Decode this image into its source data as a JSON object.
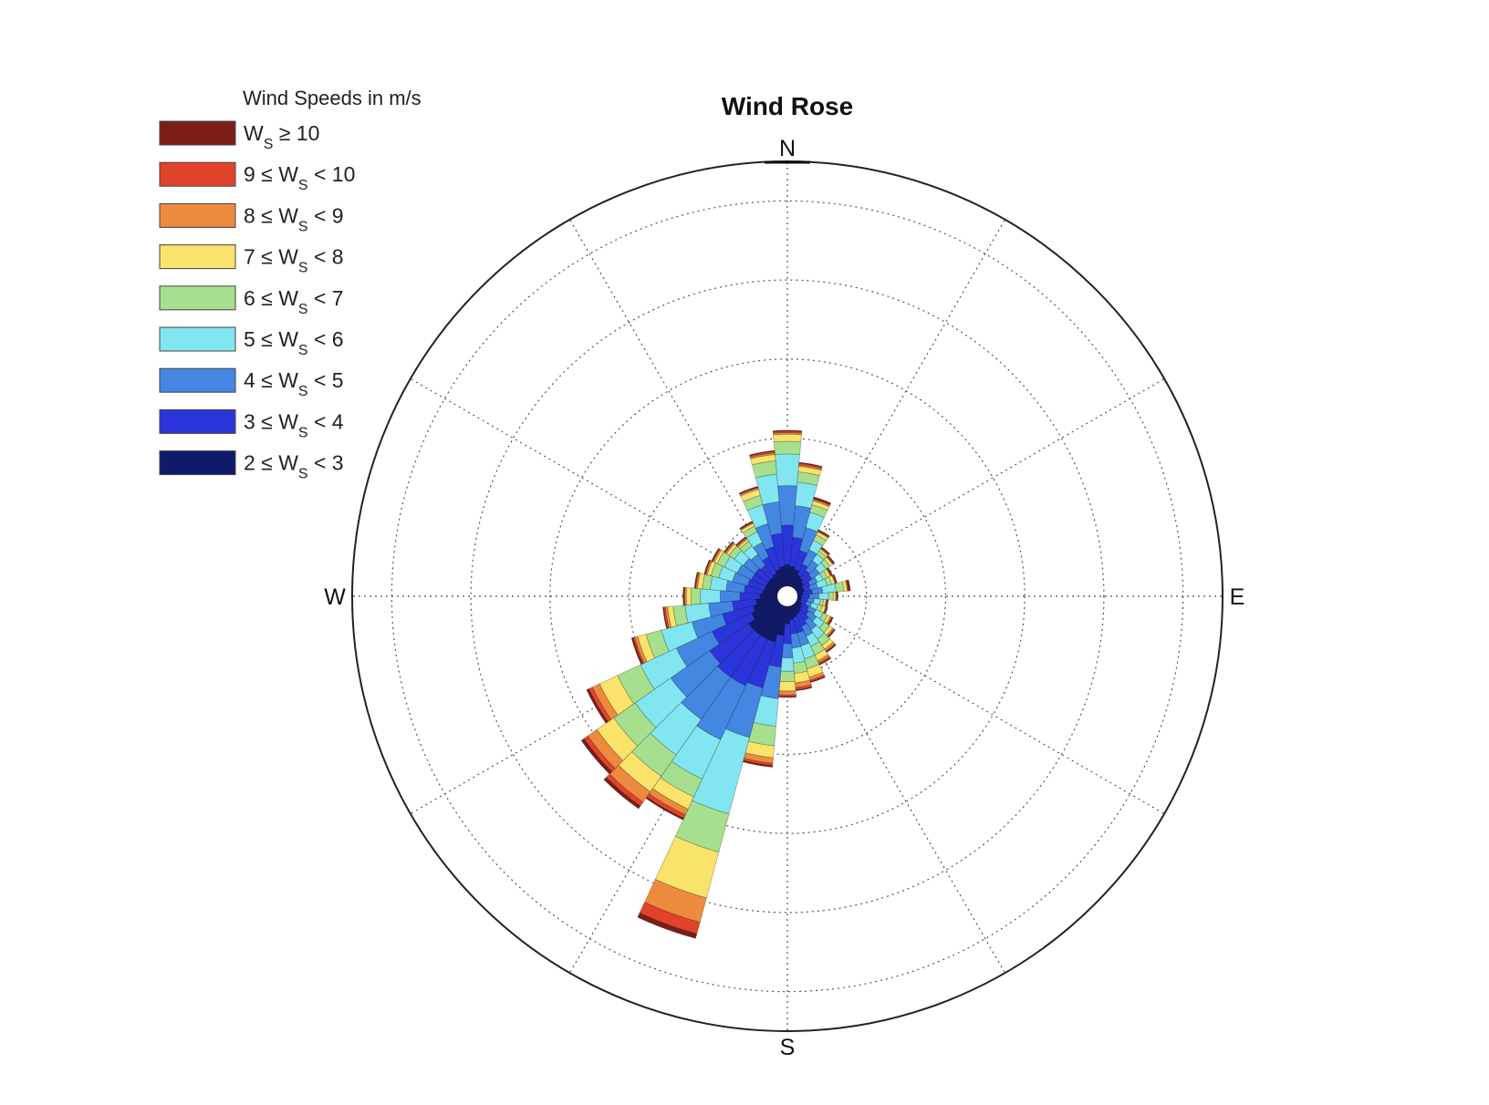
{
  "chart_data": {
    "type": "polar-bar",
    "title": "Wind Rose",
    "directions": {
      "north": "N",
      "east": "E",
      "south": "S",
      "west": "W"
    },
    "legend": {
      "title": "Wind Speeds in m/s",
      "placement": "top-left",
      "entries": [
        {
          "pre": "",
          "var": "W",
          "sub": "S",
          "post": " ≥ 10",
          "color": "#7a1e16"
        },
        {
          "pre": "9 ≤ ",
          "var": "W",
          "sub": "S",
          "post": " < 10",
          "color": "#e2432b"
        },
        {
          "pre": "8 ≤ ",
          "var": "W",
          "sub": "S",
          "post": " < 9",
          "color": "#ee8a3e"
        },
        {
          "pre": "7 ≤ ",
          "var": "W",
          "sub": "S",
          "post": " < 8",
          "color": "#f9e36b"
        },
        {
          "pre": "6 ≤ ",
          "var": "W",
          "sub": "S",
          "post": " < 7",
          "color": "#a6e08e"
        },
        {
          "pre": "5 ≤ ",
          "var": "W",
          "sub": "S",
          "post": " < 6",
          "color": "#82e6f0"
        },
        {
          "pre": "4 ≤ ",
          "var": "W",
          "sub": "S",
          "post": " < 5",
          "color": "#4487e2"
        },
        {
          "pre": "3 ≤ ",
          "var": "W",
          "sub": "S",
          "post": " < 4",
          "color": "#2b35dc"
        },
        {
          "pre": "2 ≤ ",
          "var": "W",
          "sub": "S",
          "post": " < 3",
          "color": "#0f1a6b"
        }
      ]
    },
    "rings": [
      1,
      2,
      3,
      4,
      5
    ],
    "r_max": 5.5,
    "spokes_deg": [
      0,
      30,
      60,
      90,
      120,
      150,
      180,
      210,
      240,
      270,
      300,
      330
    ],
    "bin_width_deg": 10,
    "bin_order_inner_to_outer": [
      "2-3",
      "3-4",
      "4-5",
      "5-6",
      "6-7",
      "7-8",
      "8-9",
      "9-10",
      ">=10"
    ],
    "bins": [
      {
        "dir": 0,
        "cum": [
          0.4,
          0.9,
          1.4,
          1.8,
          1.96,
          2.05,
          2.07,
          2.09,
          2.1
        ]
      },
      {
        "dir": 10,
        "cum": [
          0.38,
          0.75,
          1.15,
          1.45,
          1.58,
          1.65,
          1.67,
          1.69,
          1.7
        ]
      },
      {
        "dir": 20,
        "cum": [
          0.35,
          0.6,
          0.9,
          1.1,
          1.2,
          1.25,
          1.27,
          1.28,
          1.3
        ]
      },
      {
        "dir": 30,
        "cum": [
          0.3,
          0.45,
          0.65,
          0.78,
          0.86,
          0.9,
          0.91,
          0.92,
          0.93
        ]
      },
      {
        "dir": 40,
        "cum": [
          0.28,
          0.4,
          0.55,
          0.65,
          0.7,
          0.73,
          0.74,
          0.75,
          0.76
        ]
      },
      {
        "dir": 50,
        "cum": [
          0.25,
          0.38,
          0.5,
          0.6,
          0.66,
          0.7,
          0.71,
          0.72,
          0.73
        ]
      },
      {
        "dir": 60,
        "cum": [
          0.22,
          0.32,
          0.42,
          0.5,
          0.56,
          0.6,
          0.61,
          0.62,
          0.63
        ]
      },
      {
        "dir": 70,
        "cum": [
          0.22,
          0.3,
          0.4,
          0.52,
          0.58,
          0.62,
          0.63,
          0.64,
          0.65
        ]
      },
      {
        "dir": 80,
        "cum": [
          0.2,
          0.32,
          0.45,
          0.62,
          0.72,
          0.76,
          0.77,
          0.78,
          0.8
        ]
      },
      {
        "dir": 90,
        "cum": [
          0.18,
          0.28,
          0.4,
          0.52,
          0.58,
          0.61,
          0.62,
          0.63,
          0.64
        ]
      },
      {
        "dir": 100,
        "cum": [
          0.18,
          0.26,
          0.34,
          0.42,
          0.46,
          0.49,
          0.5,
          0.51,
          0.52
        ]
      },
      {
        "dir": 110,
        "cum": [
          0.18,
          0.25,
          0.32,
          0.4,
          0.46,
          0.5,
          0.51,
          0.52,
          0.53
        ]
      },
      {
        "dir": 120,
        "cum": [
          0.2,
          0.3,
          0.4,
          0.5,
          0.56,
          0.6,
          0.62,
          0.63,
          0.64
        ]
      },
      {
        "dir": 130,
        "cum": [
          0.22,
          0.33,
          0.45,
          0.57,
          0.65,
          0.7,
          0.72,
          0.73,
          0.74
        ]
      },
      {
        "dir": 140,
        "cum": [
          0.24,
          0.38,
          0.52,
          0.66,
          0.76,
          0.82,
          0.85,
          0.86,
          0.87
        ]
      },
      {
        "dir": 150,
        "cum": [
          0.26,
          0.42,
          0.56,
          0.7,
          0.82,
          0.9,
          0.93,
          0.95,
          0.96
        ]
      },
      {
        "dir": 160,
        "cum": [
          0.28,
          0.48,
          0.65,
          0.82,
          0.95,
          1.06,
          1.1,
          1.12,
          1.13
        ]
      },
      {
        "dir": 170,
        "cum": [
          0.3,
          0.48,
          0.66,
          0.85,
          0.98,
          1.1,
          1.16,
          1.19,
          1.2
        ]
      },
      {
        "dir": 180,
        "cum": [
          0.35,
          0.6,
          0.78,
          0.95,
          1.08,
          1.2,
          1.25,
          1.27,
          1.28
        ]
      },
      {
        "dir": 190,
        "cum": [
          0.5,
          0.9,
          1.3,
          1.65,
          1.9,
          2.05,
          2.12,
          2.15,
          2.17
        ]
      },
      {
        "dir": 200,
        "cum": [
          0.6,
          1.2,
          1.85,
          2.85,
          3.35,
          3.95,
          4.27,
          4.42,
          4.48
        ]
      },
      {
        "dir": 210,
        "cum": [
          0.6,
          1.25,
          2.0,
          2.55,
          2.8,
          2.97,
          3.05,
          3.1,
          3.12
        ]
      },
      {
        "dir": 220,
        "cum": [
          0.6,
          1.25,
          1.9,
          2.45,
          2.78,
          3.02,
          3.18,
          3.24,
          3.28
        ]
      },
      {
        "dir": 230,
        "cum": [
          0.6,
          1.2,
          1.8,
          2.35,
          2.68,
          2.94,
          3.08,
          3.14,
          3.18
        ]
      },
      {
        "dir": 240,
        "cum": [
          0.5,
          1.05,
          1.55,
          2.05,
          2.37,
          2.62,
          2.72,
          2.77,
          2.8
        ]
      },
      {
        "dir": 250,
        "cum": [
          0.45,
          0.85,
          1.25,
          1.65,
          1.85,
          1.96,
          2.0,
          2.02,
          2.04
        ]
      },
      {
        "dir": 260,
        "cum": [
          0.4,
          0.7,
          1.0,
          1.3,
          1.45,
          1.52,
          1.55,
          1.57,
          1.58
        ]
      },
      {
        "dir": 270,
        "cum": [
          0.35,
          0.6,
          0.85,
          1.1,
          1.22,
          1.28,
          1.3,
          1.31,
          1.32
        ]
      },
      {
        "dir": 280,
        "cum": [
          0.32,
          0.55,
          0.78,
          0.98,
          1.08,
          1.14,
          1.16,
          1.17,
          1.18
        ]
      },
      {
        "dir": 290,
        "cum": [
          0.3,
          0.52,
          0.72,
          0.9,
          1.0,
          1.05,
          1.07,
          1.08,
          1.09
        ]
      },
      {
        "dir": 300,
        "cum": [
          0.3,
          0.5,
          0.7,
          0.88,
          0.98,
          1.02,
          1.04,
          1.05,
          1.06
        ]
      },
      {
        "dir": 310,
        "cum": [
          0.3,
          0.5,
          0.68,
          0.82,
          0.9,
          0.94,
          0.96,
          0.97,
          0.98
        ]
      },
      {
        "dir": 320,
        "cum": [
          0.3,
          0.48,
          0.65,
          0.78,
          0.85,
          0.88,
          0.9,
          0.91,
          0.92
        ]
      },
      {
        "dir": 330,
        "cum": [
          0.32,
          0.55,
          0.75,
          0.9,
          0.98,
          1.02,
          1.03,
          1.04,
          1.05
        ]
      },
      {
        "dir": 340,
        "cum": [
          0.35,
          0.65,
          0.95,
          1.2,
          1.32,
          1.4,
          1.42,
          1.43,
          1.44
        ]
      },
      {
        "dir": 350,
        "cum": [
          0.38,
          0.8,
          1.2,
          1.55,
          1.72,
          1.8,
          1.82,
          1.84,
          1.85
        ]
      }
    ]
  }
}
